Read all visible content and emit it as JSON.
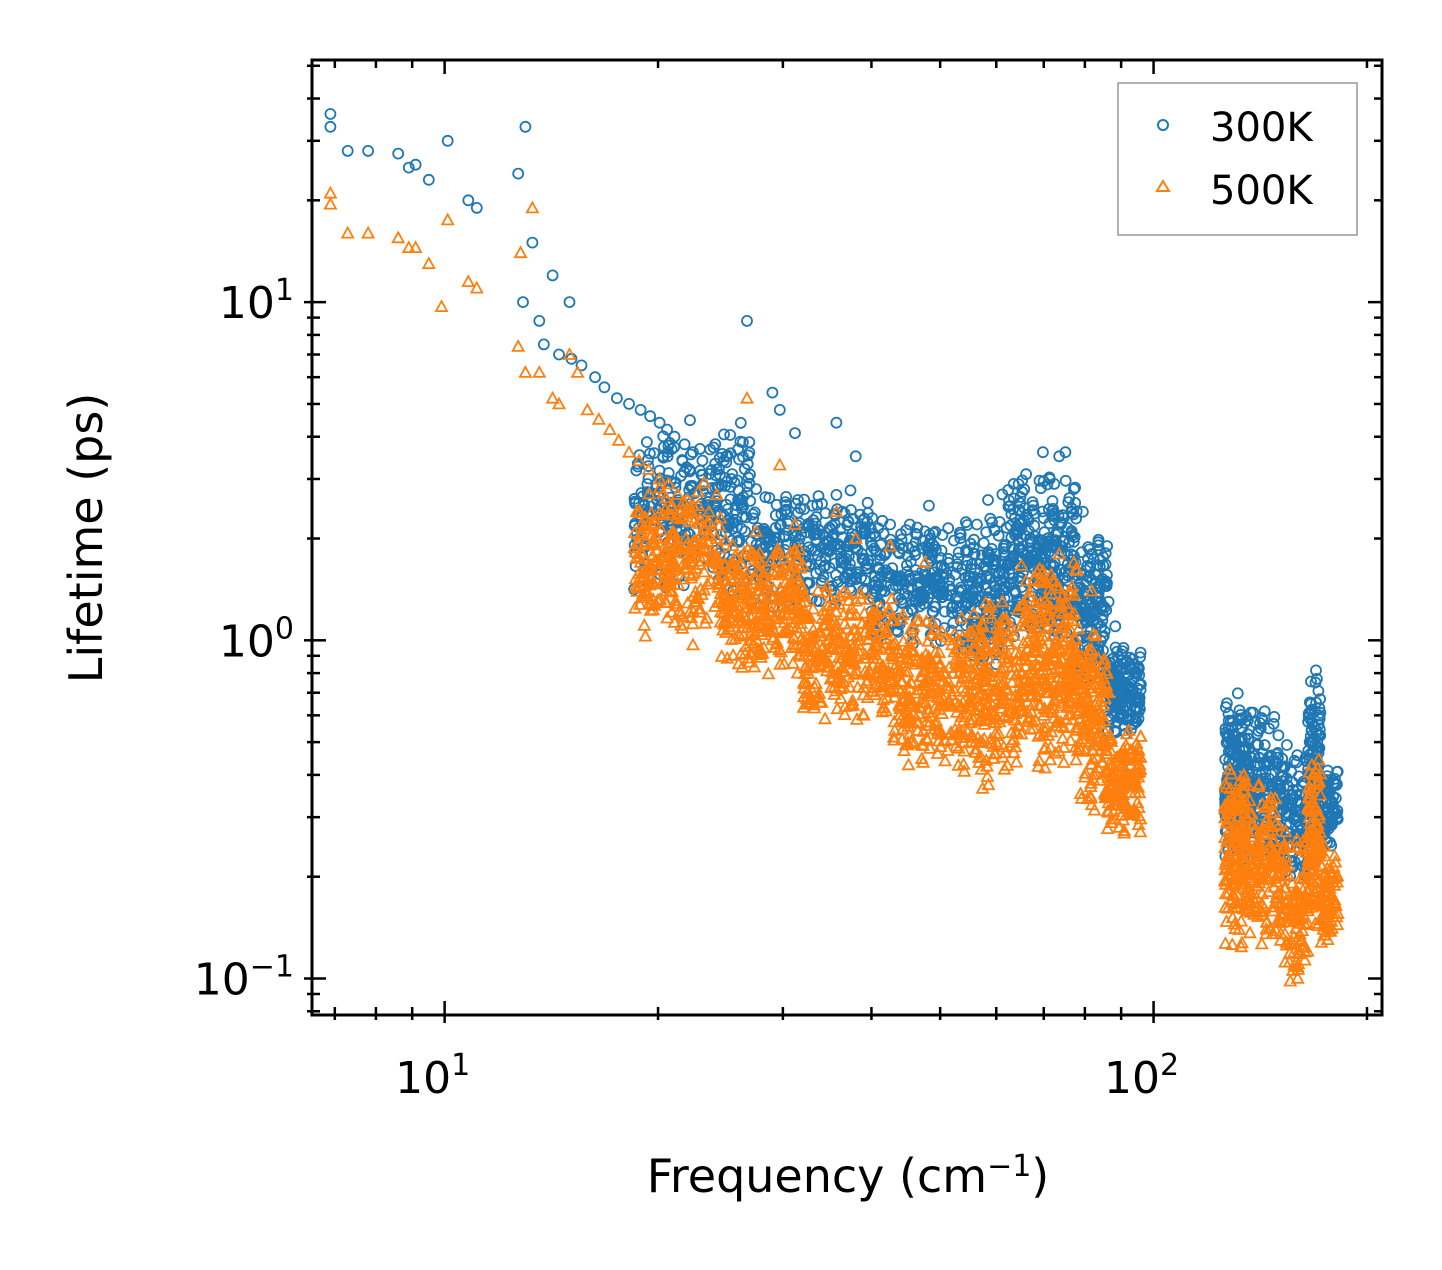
{
  "chart_data": {
    "type": "scatter",
    "title": "",
    "xlabel": "Frequency (cm",
    "xlabel_sup": "−1",
    "xlabel_close": ")",
    "ylabel": "Lifetime (ps)",
    "xscale": "log",
    "yscale": "log",
    "xlim": [
      6.5,
      210
    ],
    "ylim": [
      0.078,
      52
    ],
    "x_major_ticks": [
      10,
      100
    ],
    "x_tick_labels": [
      {
        "base": "10",
        "exp": "1"
      },
      {
        "base": "10",
        "exp": "2"
      }
    ],
    "y_major_ticks": [
      0.1,
      1,
      10
    ],
    "y_tick_labels": [
      {
        "base": "10",
        "exp": "−1"
      },
      {
        "base": "10",
        "exp": "0"
      },
      {
        "base": "10",
        "exp": "1"
      }
    ],
    "legend_position": "top-right",
    "series": [
      {
        "name": "300K",
        "marker": "circle",
        "color": "#1f77b4",
        "x": [
          6.9,
          6.9,
          7.3,
          7.8,
          8.6,
          8.9,
          9.1,
          9.5,
          10.1,
          10.8,
          11.1,
          12.7,
          13.0,
          13.3,
          14.2,
          15.0,
          12.9,
          13.6,
          13.8,
          14.5,
          15.1,
          15.6,
          16.3,
          16.8,
          17.5,
          18.2,
          18.9,
          19.5,
          20.1,
          20.6,
          21.1,
          21.8,
          22.4,
          23.1,
          24.2,
          25.4,
          26.7,
          27.5,
          29.0,
          29.7,
          31.2,
          31.5,
          33.0,
          35.7,
          36.4,
          38.0,
          40.1,
          42.5,
          45.3,
          47.6,
          48.2,
          55.8,
          58.4,
          61.2,
          63.5,
          66.1,
          69.8,
          71.4,
          73.6,
          75.1,
          77.2,
          79.5,
          81.8,
          84.2,
          86.4,
          88.3,
          90.7,
          92.5,
          94.8
        ],
        "y": [
          36,
          33,
          28,
          28,
          27.5,
          25,
          25.5,
          23,
          30,
          20,
          19,
          24,
          33,
          15,
          12,
          10,
          10,
          8.8,
          7.5,
          7,
          6.8,
          6.5,
          6,
          5.6,
          5.2,
          5.0,
          4.8,
          4.6,
          4.4,
          4.2,
          4.0,
          3.8,
          3.6,
          3.4,
          3.2,
          3.0,
          8.8,
          2.8,
          5.4,
          4.8,
          4.1,
          2.6,
          2.5,
          4.4,
          2.4,
          3.5,
          2.3,
          2.2,
          2.2,
          2.1,
          2.5,
          1.8,
          2.6,
          2.7,
          2.9,
          3.1,
          3.6,
          3.0,
          3.5,
          3.6,
          2.8,
          2.4,
          1.8,
          1.5,
          1.3,
          1.1,
          0.95,
          0.85,
          0.8
        ],
        "bands": [
          {
            "x_from": 18.5,
            "x_to": 27.0,
            "y_low": 1.35,
            "y_high": 4.6,
            "count": 300
          },
          {
            "x_from": 27.0,
            "x_to": 40.0,
            "y_low": 1.2,
            "y_high": 2.9,
            "count": 280
          },
          {
            "x_from": 40.0,
            "x_to": 52.0,
            "y_low": 0.95,
            "y_high": 2.3,
            "count": 220
          },
          {
            "x_from": 52.0,
            "x_to": 62.0,
            "y_low": 0.75,
            "y_high": 2.4,
            "count": 200
          },
          {
            "x_from": 62.0,
            "x_to": 78.0,
            "y_low": 0.95,
            "y_high": 3.2,
            "count": 300
          },
          {
            "x_from": 78.0,
            "x_to": 86.0,
            "y_low": 0.7,
            "y_high": 2.2,
            "count": 150
          },
          {
            "x_from": 86.0,
            "x_to": 96.0,
            "y_low": 0.5,
            "y_high": 1.0,
            "count": 150
          },
          {
            "x_from": 126.0,
            "x_to": 136.0,
            "y_low": 0.2,
            "y_high": 0.75,
            "count": 180
          },
          {
            "x_from": 136.0,
            "x_to": 150.0,
            "y_low": 0.2,
            "y_high": 0.65,
            "count": 140
          },
          {
            "x_from": 150.0,
            "x_to": 165.0,
            "y_low": 0.19,
            "y_high": 0.5,
            "count": 120
          },
          {
            "x_from": 165.0,
            "x_to": 172.0,
            "y_low": 0.22,
            "y_high": 0.85,
            "count": 110
          },
          {
            "x_from": 172.0,
            "x_to": 182.0,
            "y_low": 0.24,
            "y_high": 0.45,
            "count": 80
          }
        ]
      },
      {
        "name": "500K",
        "marker": "triangle",
        "color": "#ff7f0e",
        "x": [
          6.9,
          6.9,
          7.3,
          7.8,
          8.6,
          8.9,
          9.1,
          9.5,
          9.9,
          10.1,
          10.8,
          11.1,
          12.7,
          12.8,
          13.0,
          13.3,
          13.6,
          14.2,
          14.5,
          15.0,
          15.4,
          15.9,
          16.5,
          17.1,
          17.6,
          18.2,
          18.8,
          19.4,
          20.1,
          20.7,
          21.3,
          22.0,
          22.8,
          23.6,
          24.5,
          26.7,
          27.5,
          29.7,
          31.2,
          35.7,
          38.0,
          42.5,
          47.6,
          55.8,
          61.2,
          66.1,
          69.8,
          73.6,
          77.2,
          81.8,
          86.4,
          90.7,
          94.8
        ],
        "y": [
          21,
          19.5,
          16,
          16,
          15.5,
          14.5,
          14.5,
          13,
          9.7,
          17.5,
          11.5,
          11,
          7.4,
          14,
          6.2,
          19,
          6.2,
          5.2,
          5.0,
          7,
          6.2,
          4.8,
          4.5,
          4.2,
          3.9,
          3.6,
          3.4,
          3.2,
          3.0,
          2.9,
          2.7,
          2.6,
          2.5,
          2.4,
          2.3,
          5.2,
          2.1,
          3.3,
          2.2,
          2.4,
          2.0,
          1.9,
          1.7,
          1.2,
          1.3,
          1.5,
          1.6,
          1.8,
          1.7,
          1.4,
          0.7,
          0.45,
          0.42
        ],
        "bands": [
          {
            "x_from": 18.5,
            "x_to": 24.5,
            "y_low": 0.95,
            "y_high": 3.0,
            "count": 260
          },
          {
            "x_from": 24.5,
            "x_to": 32.0,
            "y_low": 0.78,
            "y_high": 2.0,
            "count": 300
          },
          {
            "x_from": 32.0,
            "x_to": 43.0,
            "y_low": 0.55,
            "y_high": 1.5,
            "count": 300
          },
          {
            "x_from": 43.0,
            "x_to": 55.0,
            "y_low": 0.38,
            "y_high": 1.3,
            "count": 260
          },
          {
            "x_from": 55.0,
            "x_to": 65.0,
            "y_low": 0.34,
            "y_high": 1.4,
            "count": 220
          },
          {
            "x_from": 65.0,
            "x_to": 78.0,
            "y_low": 0.4,
            "y_high": 1.85,
            "count": 300
          },
          {
            "x_from": 78.0,
            "x_to": 86.0,
            "y_low": 0.3,
            "y_high": 1.2,
            "count": 160
          },
          {
            "x_from": 86.0,
            "x_to": 96.0,
            "y_low": 0.26,
            "y_high": 0.55,
            "count": 150
          },
          {
            "x_from": 126.0,
            "x_to": 136.0,
            "y_low": 0.12,
            "y_high": 0.45,
            "count": 170
          },
          {
            "x_from": 136.0,
            "x_to": 150.0,
            "y_low": 0.12,
            "y_high": 0.4,
            "count": 140
          },
          {
            "x_from": 150.0,
            "x_to": 165.0,
            "y_low": 0.095,
            "y_high": 0.3,
            "count": 120
          },
          {
            "x_from": 165.0,
            "x_to": 172.0,
            "y_low": 0.13,
            "y_high": 0.46,
            "count": 110
          },
          {
            "x_from": 172.0,
            "x_to": 182.0,
            "y_low": 0.12,
            "y_high": 0.25,
            "count": 80
          }
        ]
      }
    ]
  }
}
